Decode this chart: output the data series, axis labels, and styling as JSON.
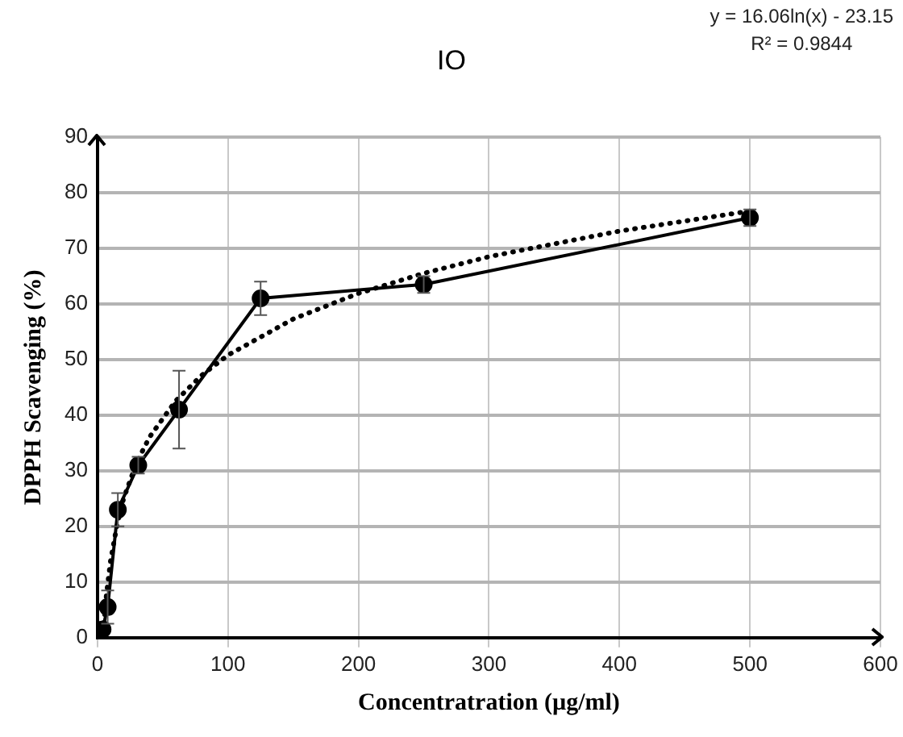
{
  "chart_data": {
    "type": "line",
    "title": "IO",
    "xlabel": "Concentratration (µg/ml)",
    "ylabel": "DPPH Scavenging (%)",
    "annotations": [
      "y = 16.06ln(x) - 23.15",
      "R² = 0.9844"
    ],
    "xlim": [
      0,
      600
    ],
    "xticks": [
      0,
      100,
      200,
      300,
      400,
      500,
      600
    ],
    "ylim": [
      0,
      90
    ],
    "yticks": [
      0,
      10,
      20,
      30,
      40,
      50,
      60,
      70,
      80,
      90
    ],
    "grid": true,
    "legend": false,
    "marker": "circle",
    "series": [
      {
        "color": "#000000",
        "x": [
          3.9,
          7.8,
          15.6,
          31.25,
          62.5,
          125,
          250,
          500
        ],
        "values": [
          1.5,
          5.5,
          23,
          31,
          41,
          61,
          63.5,
          75.5
        ],
        "errors": [
          null,
          3,
          3,
          1.5,
          7,
          3,
          1.5,
          1.5
        ],
        "line_style": "solid"
      },
      {
        "type": "line",
        "color": "#000000",
        "x": [
          4.5,
          5,
          7,
          10,
          15,
          20,
          30,
          40,
          60,
          80,
          100,
          150,
          200,
          250,
          300,
          400,
          500
        ],
        "values": [
          1,
          2.7,
          8.1,
          13.8,
          20.3,
          25,
          31.5,
          36.1,
          42.6,
          47.2,
          50.8,
          57.3,
          61.9,
          65.5,
          68.5,
          73.1,
          76.7
        ],
        "line_style": "dotted",
        "marker": "none"
      }
    ]
  }
}
